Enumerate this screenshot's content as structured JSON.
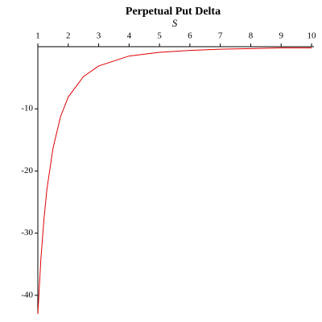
{
  "chart_data": {
    "type": "line",
    "title": "Perpetual Put Delta",
    "x_label": "S",
    "x": [
      1,
      1.1,
      1.2,
      1.3,
      1.5,
      1.75,
      2,
      2.5,
      3,
      4,
      5,
      6,
      7,
      8,
      9,
      10
    ],
    "series": [
      {
        "color": "#e00000",
        "values": [
          -43,
          -34.2,
          -27.8,
          -22.9,
          -16.3,
          -11.2,
          -8.1,
          -4.8,
          -3.1,
          -1.5,
          -0.9,
          -0.6,
          -0.4,
          -0.3,
          -0.2,
          -0.2
        ]
      }
    ],
    "xlim": [
      1,
      10
    ],
    "xticks": [
      1,
      2,
      3,
      4,
      5,
      6,
      7,
      8,
      9,
      10
    ],
    "ylim": [
      -43,
      0
    ],
    "yticks": [
      -40,
      -30,
      -20,
      -10
    ]
  }
}
